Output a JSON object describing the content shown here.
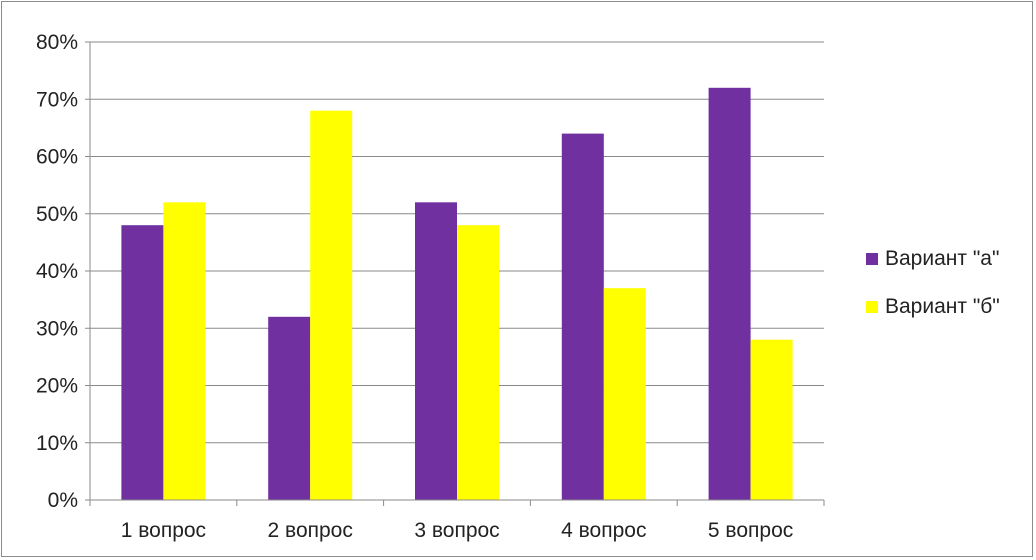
{
  "chart_data": {
    "type": "bar",
    "title": "",
    "xlabel": "",
    "ylabel": "",
    "categories": [
      "1 вопрос",
      "2 вопрос",
      "3 вопрос",
      "4 вопрос",
      "5 вопрос"
    ],
    "series": [
      {
        "name": "Вариант \"а\"",
        "values": [
          48,
          32,
          52,
          64,
          72
        ],
        "color": "#7030a0"
      },
      {
        "name": "Вариант \"б\"",
        "values": [
          52,
          68,
          48,
          37,
          28
        ],
        "color": "#ffff00"
      }
    ],
    "ylim": [
      0,
      80
    ],
    "yticks": [
      0,
      10,
      20,
      30,
      40,
      50,
      60,
      70,
      80
    ],
    "ytick_format": "percent",
    "grid": true,
    "legend_position": "right"
  }
}
